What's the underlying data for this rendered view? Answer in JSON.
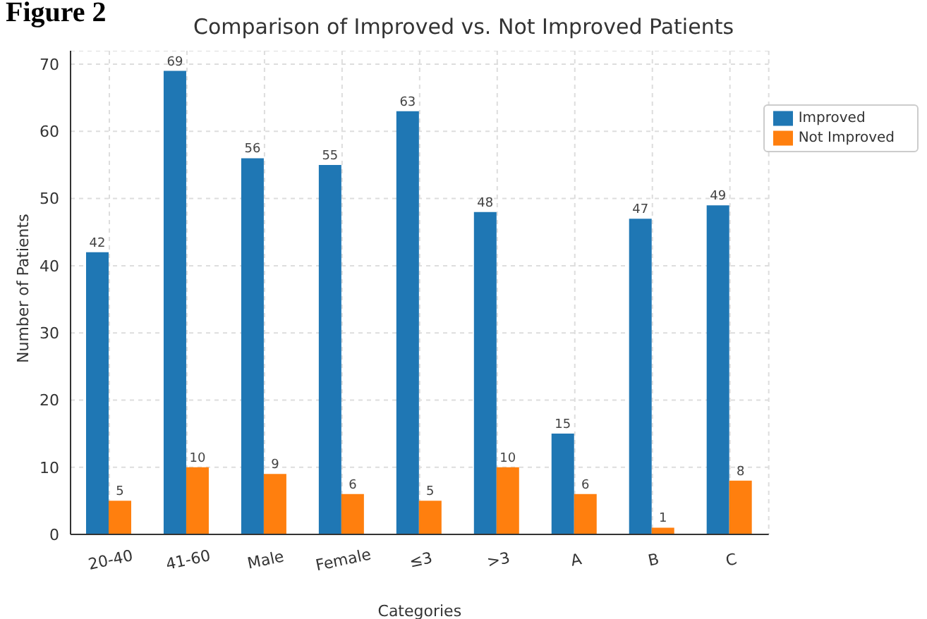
{
  "chart_data": {
    "type": "bar",
    "title": "Comparison of Improved vs. Not Improved Patients",
    "xlabel": "Categories",
    "ylabel": "Number of Patients",
    "annotations": [
      "Figure 2"
    ],
    "categories": [
      "20-40",
      "41-60",
      "Male",
      "Female",
      "≤3",
      ">3",
      "A",
      "B",
      "C"
    ],
    "series": [
      {
        "name": "Improved",
        "color": "#1f77b4",
        "values": [
          42,
          69,
          56,
          55,
          63,
          48,
          15,
          47,
          49
        ]
      },
      {
        "name": "Not Improved",
        "color": "#ff7f0e",
        "values": [
          5,
          10,
          9,
          6,
          5,
          10,
          6,
          1,
          8
        ]
      }
    ],
    "ylim": [
      0,
      72
    ],
    "yticks": [
      0,
      10,
      20,
      30,
      40,
      50,
      60,
      70
    ],
    "grid": true,
    "legend": "top right",
    "data_labels": true
  }
}
